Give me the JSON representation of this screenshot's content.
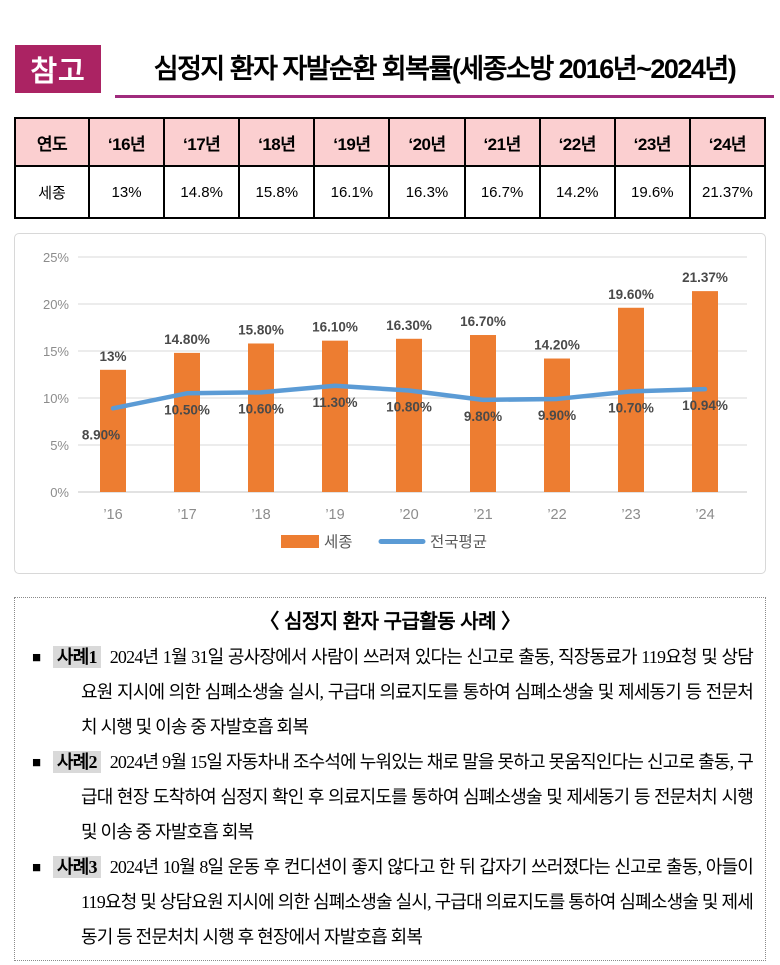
{
  "theme": {
    "badge_bg": "#AB2363",
    "title_underline": "#A02B7D",
    "table_header_bg": "#FBCFD0",
    "bar_color": "#ED7D31",
    "line_color": "#5B9BD5",
    "grid_color": "#D9D9D9",
    "axis_text_color": "#8C8C8C",
    "data_label_color": "#4A4A4A",
    "legend_text_color": "#595959",
    "case_highlight_bg": "#D9D9D9"
  },
  "header": {
    "badge": "참고",
    "title": "심정지 환자 자발순환 회복률(세종소방 2016년~2024년)"
  },
  "table": {
    "header_row": [
      "연도",
      "‘16년",
      "‘17년",
      "‘18년",
      "‘19년",
      "‘20년",
      "‘21년",
      "‘22년",
      "‘23년",
      "‘24년"
    ],
    "data_row": [
      "세종",
      "13%",
      "14.8%",
      "15.8%",
      "16.1%",
      "16.3%",
      "16.7%",
      "14.2%",
      "19.6%",
      "21.37%"
    ]
  },
  "chart_data": {
    "type": "bar",
    "categories": [
      "’16",
      "’17",
      "’18",
      "’19",
      "’20",
      "’21",
      "’22",
      "’23",
      "’24"
    ],
    "series": [
      {
        "name": "세종",
        "type": "bar",
        "color": "#ED7D31",
        "values": [
          13,
          14.8,
          15.8,
          16.1,
          16.3,
          16.7,
          14.2,
          19.6,
          21.37
        ],
        "labels": [
          "13%",
          "14.80%",
          "15.80%",
          "16.10%",
          "16.30%",
          "16.70%",
          "14.20%",
          "19.60%",
          "21.37%"
        ]
      },
      {
        "name": "전국평균",
        "type": "line",
        "color": "#5B9BD5",
        "values": [
          8.9,
          10.5,
          10.6,
          11.3,
          10.8,
          9.8,
          9.9,
          10.7,
          10.94
        ],
        "labels": [
          "8.90%",
          "10.50%",
          "10.60%",
          "11.30%",
          "10.80%",
          "9.80%",
          "9.90%",
          "10.70%",
          "10.94%"
        ]
      }
    ],
    "title": "",
    "xlabel": "",
    "ylabel": "",
    "ylim": [
      0,
      25
    ],
    "yticks": [
      0,
      5,
      10,
      15,
      20,
      25
    ],
    "ytick_suffix": "%",
    "grid": true,
    "legend_position": "bottom"
  },
  "cases": {
    "bullet": "■",
    "title": "〈 심정지 환자 구급활동 사례 〉",
    "items": [
      {
        "label": "사례1",
        "text": "2024년 1월 31일 공사장에서 사람이 쓰러져 있다는 신고로 출동, 직장동료가 119요청 및 상담요원 지시에 의한 심폐소생술 실시, 구급대 의료지도를 통하여 심폐소생술 및 제세동기 등 전문처치 시행 및 이송 중 자발호흡 회복"
      },
      {
        "label": "사례2",
        "text": "2024년 9월 15일 자동차내 조수석에 누워있는 채로 말을 못하고 못움직인다는 신고로 출동, 구급대 현장 도착하여 심정지 확인 후 의료지도를 통하여 심폐소생술 및 제세동기 등 전문처치 시행 및 이송 중 자발호흡 회복"
      },
      {
        "label": "사례3",
        "text": "2024년 10월 8일 운동 후 컨디션이 좋지 않다고 한 뒤 갑자기 쓰러졌다는 신고로 출동, 아들이 119요청 및 상담요원 지시에 의한 심폐소생술 실시, 구급대 의료지도를 통하여 심폐소생술 및 제세동기 등 전문처치 시행 후 현장에서 자발호흡 회복"
      }
    ]
  }
}
